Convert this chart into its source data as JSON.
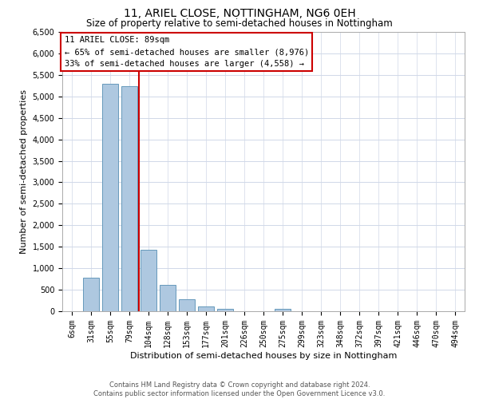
{
  "title": "11, ARIEL CLOSE, NOTTINGHAM, NG6 0EH",
  "subtitle": "Size of property relative to semi-detached houses in Nottingham",
  "xlabel": "Distribution of semi-detached houses by size in Nottingham",
  "ylabel": "Number of semi-detached properties",
  "categories": [
    "6sqm",
    "31sqm",
    "55sqm",
    "79sqm",
    "104sqm",
    "128sqm",
    "153sqm",
    "177sqm",
    "201sqm",
    "226sqm",
    "250sqm",
    "275sqm",
    "299sqm",
    "323sqm",
    "348sqm",
    "372sqm",
    "397sqm",
    "421sqm",
    "446sqm",
    "470sqm",
    "494sqm"
  ],
  "bar_values": [
    0,
    780,
    5300,
    5230,
    1430,
    620,
    270,
    120,
    50,
    0,
    0,
    50,
    0,
    0,
    0,
    0,
    0,
    0,
    0,
    0,
    0
  ],
  "bar_color": "#aec8e0",
  "bar_edge_color": "#6699bb",
  "property_line_x": 3.5,
  "property_line_color": "#cc0000",
  "annotation_title": "11 ARIEL CLOSE: 89sqm",
  "annotation_line1": "← 65% of semi-detached houses are smaller (8,976)",
  "annotation_line2": "33% of semi-detached houses are larger (4,558) →",
  "annotation_box_color": "#cc0000",
  "ylim": [
    0,
    6500
  ],
  "yticks": [
    0,
    500,
    1000,
    1500,
    2000,
    2500,
    3000,
    3500,
    4000,
    4500,
    5000,
    5500,
    6000,
    6500
  ],
  "footer_line1": "Contains HM Land Registry data © Crown copyright and database right 2024.",
  "footer_line2": "Contains public sector information licensed under the Open Government Licence v3.0.",
  "bg_color": "#ffffff",
  "grid_color": "#d0d8e8",
  "title_fontsize": 10,
  "subtitle_fontsize": 8.5,
  "xlabel_fontsize": 8,
  "ylabel_fontsize": 8,
  "tick_fontsize": 7,
  "annotation_fontsize": 7.5,
  "footer_fontsize": 6
}
